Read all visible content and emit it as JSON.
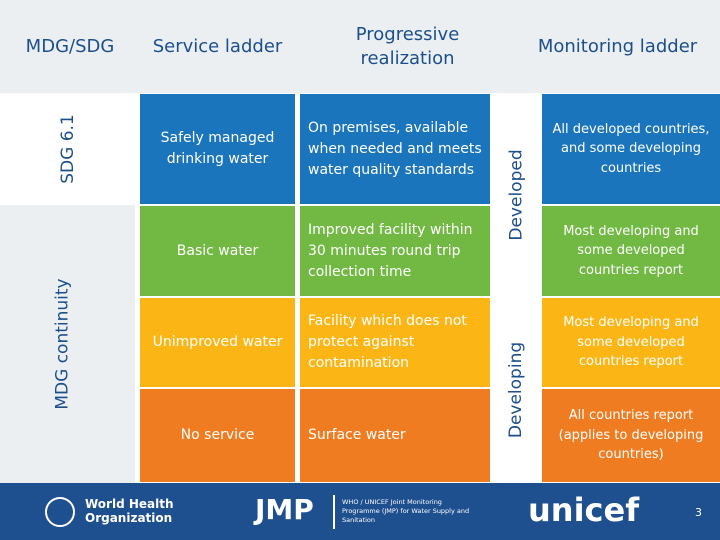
{
  "header": [
    "MDG/SDG",
    "Service ladder",
    "Progressive realization",
    "Monitoring ladder"
  ],
  "side": [
    "SDG 6.1",
    "MDG continuity"
  ],
  "tiers": [
    "Developed",
    "Developing"
  ],
  "rows": [
    {
      "service": "Safely managed drinking water",
      "description": "On premises, available when needed and meets water quality standards",
      "monitoring": "All developed countries, and some developing countries"
    },
    {
      "service": "Basic water",
      "description": "Improved facility within 30 minutes round trip collection time",
      "monitoring": "Most developing and some developed countries report"
    },
    {
      "service": "Unimproved water",
      "description": "Facility which does not protect against contamination",
      "monitoring": "Most developing and some developed countries report"
    },
    {
      "service": "No service",
      "description": "Surface water",
      "monitoring": "All countries report (applies to developing countries)"
    }
  ],
  "footer": [
    "World Health Organization",
    "JMP",
    "WHO / UNICEF Joint Monitoring Programme (JMP) for Water Supply and Sanitation",
    "unicef",
    "3"
  ]
}
